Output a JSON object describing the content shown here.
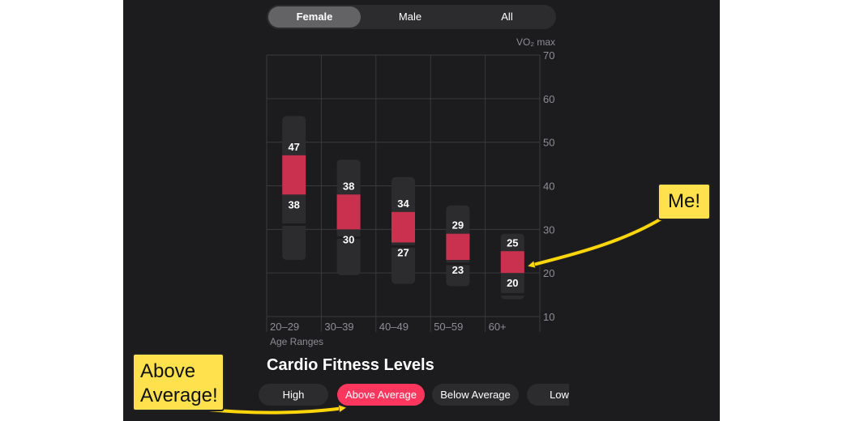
{
  "tabs": [
    {
      "label": "Female",
      "active": true
    },
    {
      "label": "Male",
      "active": false
    },
    {
      "label": "All",
      "active": false
    }
  ],
  "chart_data": {
    "type": "range-bar",
    "y_axis_title": "VO₂ max",
    "x_axis_title": "Age Ranges",
    "ylim": [
      10,
      70
    ],
    "yticks": [
      10,
      20,
      30,
      40,
      50,
      60,
      70
    ],
    "grid": true,
    "categories": [
      "20–29",
      "30–39",
      "40–49",
      "50–59",
      "60+"
    ],
    "overall_range": [
      [
        56,
        23
      ],
      [
        46,
        19.5
      ],
      [
        42,
        17.5
      ],
      [
        35.5,
        17
      ],
      [
        29,
        14
      ]
    ],
    "highlight_range": [
      [
        47,
        38
      ],
      [
        38,
        30
      ],
      [
        34,
        27
      ],
      [
        29,
        23
      ],
      [
        25,
        20
      ]
    ],
    "lower_divider": [
      31,
      28,
      26,
      22,
      15
    ],
    "colors": {
      "highlight": "#c9314f",
      "track": "#2c2c2e",
      "grid": "#3a3a3c",
      "axis_text": "#8e8e93"
    }
  },
  "section": {
    "title": "Cardio Fitness Levels"
  },
  "levels": [
    {
      "label": "High",
      "active": false
    },
    {
      "label": "Above Average",
      "active": true
    },
    {
      "label": "Below Average",
      "active": false
    },
    {
      "label": "Low",
      "active": false
    }
  ],
  "annotations": {
    "me": "Me!",
    "above_average_line1": "Above",
    "above_average_line2": "Average!"
  }
}
